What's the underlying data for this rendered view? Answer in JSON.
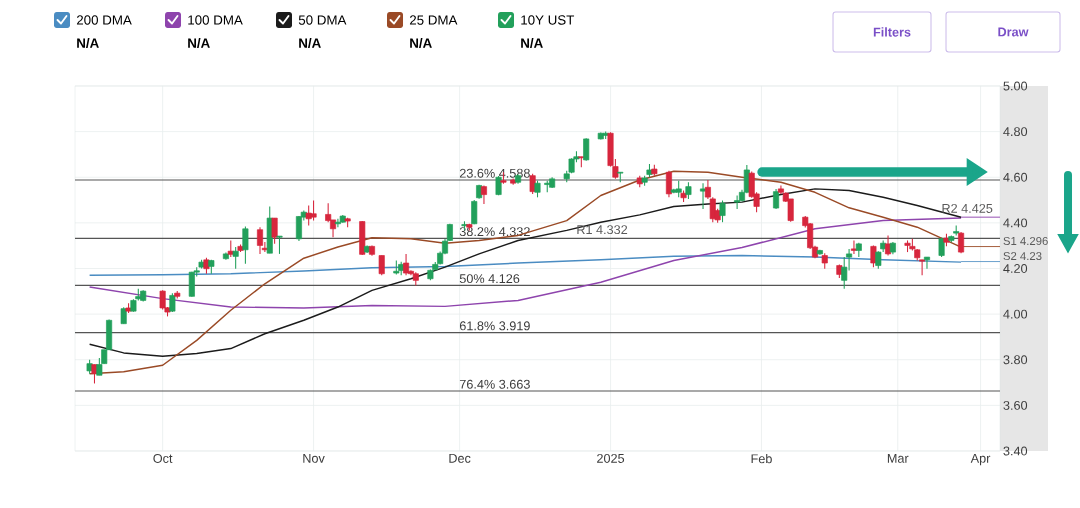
{
  "chart_data": {
    "type": "candlestick",
    "xlim": [
      "2024-09-27",
      "2025-04-05"
    ],
    "ylim": [
      3.4,
      5.0
    ],
    "xticks": [
      {
        "value": "2024-10-15",
        "label": "Oct"
      },
      {
        "value": "2024-11-15",
        "label": "Nov"
      },
      {
        "value": "2024-12-15",
        "label": "Dec"
      },
      {
        "value": "2025-01-15",
        "label": "2025"
      },
      {
        "value": "2025-02-15",
        "label": "Feb"
      },
      {
        "value": "2025-03-15",
        "label": "Mar"
      },
      {
        "value": "2025-04-01",
        "label": "Apr"
      }
    ],
    "yticks": [
      {
        "value": 3.4,
        "label": "3.40"
      },
      {
        "value": 3.6,
        "label": "3.60"
      },
      {
        "value": 3.8,
        "label": "3.80"
      },
      {
        "value": 4.0,
        "label": "4.00"
      },
      {
        "value": 4.2,
        "label": "4.20"
      },
      {
        "value": 4.4,
        "label": "4.40"
      },
      {
        "value": 4.6,
        "label": "4.60"
      },
      {
        "value": 4.8,
        "label": "4.80"
      },
      {
        "value": 5.0,
        "label": "5.00"
      }
    ],
    "grid": true,
    "legend": "top left",
    "series": [
      {
        "name": "200 DMA",
        "type": "line",
        "color": "#4a8cc2",
        "x": [
          "2024-09-30",
          "2024-10-15",
          "2024-10-29",
          "2024-11-13",
          "2024-11-27",
          "2024-12-12",
          "2024-12-27",
          "2025-01-13",
          "2025-01-28",
          "2025-02-11",
          "2025-02-26",
          "2025-03-12",
          "2025-03-28"
        ],
        "values": [
          4.17,
          4.173,
          4.177,
          4.189,
          4.203,
          4.209,
          4.224,
          4.238,
          4.254,
          4.257,
          4.25,
          4.238,
          4.228
        ]
      },
      {
        "name": "100 DMA",
        "type": "line",
        "color": "#8e44ad",
        "x": [
          "2024-09-30",
          "2024-10-15",
          "2024-10-29",
          "2024-11-13",
          "2024-11-27",
          "2024-12-12",
          "2024-12-27",
          "2025-01-13",
          "2025-01-28",
          "2025-02-11",
          "2025-02-26",
          "2025-03-12",
          "2025-03-28"
        ],
        "values": [
          4.119,
          4.068,
          4.031,
          4.027,
          4.038,
          4.034,
          4.06,
          4.14,
          4.235,
          4.292,
          4.374,
          4.41,
          4.421
        ]
      },
      {
        "name": "50 DMA",
        "type": "line",
        "color": "#1b1b1b",
        "x": [
          "2024-09-30",
          "2024-10-07",
          "2024-10-15",
          "2024-10-22",
          "2024-10-29",
          "2024-11-05",
          "2024-11-13",
          "2024-11-20",
          "2024-11-27",
          "2024-12-05",
          "2024-12-12",
          "2024-12-19",
          "2024-12-27",
          "2025-01-06",
          "2025-01-13",
          "2025-01-21",
          "2025-01-28",
          "2025-02-04",
          "2025-02-11",
          "2025-02-19",
          "2025-02-26",
          "2025-03-05",
          "2025-03-12",
          "2025-03-19",
          "2025-03-28"
        ],
        "values": [
          3.868,
          3.83,
          3.815,
          3.827,
          3.849,
          3.914,
          3.973,
          4.031,
          4.104,
          4.155,
          4.206,
          4.264,
          4.323,
          4.367,
          4.403,
          4.435,
          4.472,
          4.483,
          4.491,
          4.524,
          4.549,
          4.542,
          4.512,
          4.476,
          4.425
        ]
      },
      {
        "name": "25 DMA",
        "type": "line",
        "color": "#9a4a26",
        "x": [
          "2024-09-30",
          "2024-10-07",
          "2024-10-15",
          "2024-10-22",
          "2024-10-29",
          "2024-11-05",
          "2024-11-13",
          "2024-11-20",
          "2024-11-27",
          "2024-12-05",
          "2024-12-12",
          "2024-12-19",
          "2024-12-27",
          "2025-01-06",
          "2025-01-13",
          "2025-01-21",
          "2025-01-28",
          "2025-02-04",
          "2025-02-11",
          "2025-02-19",
          "2025-02-26",
          "2025-03-05",
          "2025-03-12",
          "2025-03-19",
          "2025-03-28"
        ],
        "values": [
          3.739,
          3.747,
          3.776,
          3.885,
          4.017,
          4.133,
          4.245,
          4.294,
          4.335,
          4.33,
          4.311,
          4.323,
          4.345,
          4.41,
          4.52,
          4.588,
          4.626,
          4.622,
          4.6,
          4.578,
          4.534,
          4.466,
          4.425,
          4.381,
          4.294
        ]
      },
      {
        "name": "10Y UST",
        "color": "#22a05b",
        "x": [
          "2024-09-30",
          "2024-10-01",
          "2024-10-02",
          "2024-10-03",
          "2024-10-04",
          "2024-10-07",
          "2024-10-08",
          "2024-10-09",
          "2024-10-10",
          "2024-10-11",
          "2024-10-15",
          "2024-10-16",
          "2024-10-17",
          "2024-10-18",
          "2024-10-21",
          "2024-10-22",
          "2024-10-23",
          "2024-10-24",
          "2024-10-25",
          "2024-10-28",
          "2024-10-29",
          "2024-10-30",
          "2024-10-31",
          "2024-11-01",
          "2024-11-04",
          "2024-11-05",
          "2024-11-06",
          "2024-11-07",
          "2024-11-08",
          "2024-11-12",
          "2024-11-13",
          "2024-11-14",
          "2024-11-15",
          "2024-11-18",
          "2024-11-19",
          "2024-11-20",
          "2024-11-21",
          "2024-11-22",
          "2024-11-25",
          "2024-11-26",
          "2024-11-27",
          "2024-11-29",
          "2024-12-02",
          "2024-12-03",
          "2024-12-04",
          "2024-12-05",
          "2024-12-06",
          "2024-12-09",
          "2024-12-10",
          "2024-12-11",
          "2024-12-12",
          "2024-12-13",
          "2024-12-16",
          "2024-12-17",
          "2024-12-18",
          "2024-12-19",
          "2024-12-20",
          "2024-12-23",
          "2024-12-24",
          "2024-12-26",
          "2024-12-27",
          "2024-12-30",
          "2024-12-31",
          "2025-01-02",
          "2025-01-03",
          "2025-01-06",
          "2025-01-07",
          "2025-01-08",
          "2025-01-09",
          "2025-01-10",
          "2025-01-13",
          "2025-01-14",
          "2025-01-15",
          "2025-01-16",
          "2025-01-17",
          "2025-01-21",
          "2025-01-22",
          "2025-01-23",
          "2025-01-24",
          "2025-01-27",
          "2025-01-28",
          "2025-01-29",
          "2025-01-30",
          "2025-01-31",
          "2025-02-03",
          "2025-02-04",
          "2025-02-05",
          "2025-02-06",
          "2025-02-07",
          "2025-02-10",
          "2025-02-11",
          "2025-02-12",
          "2025-02-13",
          "2025-02-14",
          "2025-02-18",
          "2025-02-19",
          "2025-02-20",
          "2025-02-21",
          "2025-02-24",
          "2025-02-25",
          "2025-02-26",
          "2025-02-27",
          "2025-02-28",
          "2025-03-03",
          "2025-03-04",
          "2025-03-05",
          "2025-03-06",
          "2025-03-07",
          "2025-03-10",
          "2025-03-11",
          "2025-03-12",
          "2025-03-13",
          "2025-03-14",
          "2025-03-17",
          "2025-03-18",
          "2025-03-19",
          "2025-03-20",
          "2025-03-21",
          "2025-03-24",
          "2025-03-25",
          "2025-03-26",
          "2025-03-27",
          "2025-03-28"
        ],
        "ohlc": [
          [
            3.751,
            3.8,
            3.739,
            3.783
          ],
          [
            3.779,
            3.779,
            3.696,
            3.739
          ],
          [
            3.732,
            3.808,
            3.732,
            3.779
          ],
          [
            3.783,
            3.844,
            3.783,
            3.844
          ],
          [
            3.844,
            3.976,
            3.844,
            3.973
          ],
          [
            3.958,
            4.03,
            3.958,
            4.024
          ],
          [
            4.027,
            4.048,
            4.005,
            4.013
          ],
          [
            4.013,
            4.065,
            4.01,
            4.06
          ],
          [
            4.067,
            4.111,
            4.06,
            4.077
          ],
          [
            4.06,
            4.105,
            4.055,
            4.101
          ],
          [
            4.101,
            4.105,
            4.02,
            4.027
          ],
          [
            4.028,
            4.031,
            3.99,
            4.009
          ],
          [
            4.013,
            4.092,
            4.009,
            4.082
          ],
          [
            4.092,
            4.101,
            4.068,
            4.078
          ],
          [
            4.078,
            4.186,
            4.076,
            4.184
          ],
          [
            4.184,
            4.206,
            4.165,
            4.19
          ],
          [
            4.206,
            4.238,
            4.2,
            4.228
          ],
          [
            4.238,
            4.247,
            4.177,
            4.199
          ],
          [
            4.209,
            4.238,
            4.177,
            4.235
          ],
          [
            4.243,
            4.27,
            4.238,
            4.264
          ],
          [
            4.276,
            4.323,
            4.25,
            4.262
          ],
          [
            4.253,
            4.294,
            4.199,
            4.276
          ],
          [
            4.297,
            4.305,
            4.272,
            4.279
          ],
          [
            4.282,
            4.384,
            4.221,
            4.374
          ],
          [
            4.37,
            4.381,
            4.264,
            4.301
          ],
          [
            4.289,
            4.316,
            4.272,
            4.282
          ],
          [
            4.267,
            4.472,
            4.267,
            4.421
          ],
          [
            4.421,
            4.421,
            4.308,
            4.337
          ],
          [
            4.337,
            4.342,
            4.264,
            4.342
          ],
          [
            4.33,
            4.43,
            4.32,
            4.428
          ],
          [
            4.425,
            4.454,
            4.41,
            4.447
          ],
          [
            4.443,
            4.476,
            4.389,
            4.418
          ],
          [
            4.44,
            4.498,
            4.41,
            4.425
          ],
          [
            4.437,
            4.486,
            4.403,
            4.41
          ],
          [
            4.413,
            4.413,
            4.337,
            4.374
          ],
          [
            4.396,
            4.418,
            4.381,
            4.403
          ],
          [
            4.403,
            4.435,
            4.4,
            4.43
          ],
          [
            4.418,
            4.422,
            4.381,
            4.408
          ],
          [
            4.406,
            4.408,
            4.259,
            4.262
          ],
          [
            4.272,
            4.301,
            4.268,
            4.297
          ],
          [
            4.297,
            4.301,
            4.256,
            4.262
          ],
          [
            4.257,
            4.257,
            4.17,
            4.177
          ],
          [
            4.18,
            4.235,
            4.174,
            4.188
          ],
          [
            4.191,
            4.23,
            4.17,
            4.218
          ],
          [
            4.224,
            4.264,
            4.17,
            4.18
          ],
          [
            4.188,
            4.192,
            4.17,
            4.177
          ],
          [
            4.177,
            4.184,
            4.126,
            4.148
          ],
          [
            4.155,
            4.196,
            4.148,
            4.192
          ],
          [
            4.195,
            4.228,
            4.192,
            4.218
          ],
          [
            4.221,
            4.275,
            4.218,
            4.267
          ],
          [
            4.267,
            4.329,
            4.262,
            4.32
          ],
          [
            4.323,
            4.396,
            4.32,
            4.393
          ],
          [
            4.387,
            4.407,
            4.367,
            4.393
          ],
          [
            4.393,
            4.396,
            4.367,
            4.381
          ],
          [
            4.396,
            4.5,
            4.394,
            4.494
          ],
          [
            4.51,
            4.567,
            4.506,
            4.564
          ],
          [
            4.559,
            4.564,
            4.483,
            4.524
          ],
          [
            4.524,
            4.606,
            4.521,
            4.6
          ],
          [
            4.585,
            4.622,
            4.571,
            4.578
          ],
          [
            4.588,
            4.594,
            4.567,
            4.574
          ],
          [
            4.578,
            4.613,
            4.571,
            4.607
          ],
          [
            4.607,
            4.615,
            4.527,
            4.537
          ],
          [
            4.534,
            4.585,
            4.512,
            4.574
          ],
          [
            4.568,
            4.585,
            4.534,
            4.574
          ],
          [
            4.556,
            4.6,
            4.553,
            4.593
          ],
          [
            4.593,
            4.629,
            4.578,
            4.615
          ],
          [
            4.622,
            4.683,
            4.618,
            4.68
          ],
          [
            4.68,
            4.714,
            4.666,
            4.69
          ],
          [
            4.69,
            4.69,
            4.644,
            4.685
          ],
          [
            4.676,
            4.771,
            4.672,
            4.768
          ],
          [
            4.768,
            4.796,
            4.765,
            4.793
          ],
          [
            4.783,
            4.801,
            4.768,
            4.793
          ],
          [
            4.793,
            4.797,
            4.647,
            4.651
          ],
          [
            4.647,
            4.68,
            4.593,
            4.6
          ],
          [
            4.618,
            4.622,
            4.578,
            4.622
          ],
          [
            4.597,
            4.607,
            4.556,
            4.571
          ],
          [
            4.578,
            4.607,
            4.563,
            4.597
          ],
          [
            4.612,
            4.658,
            4.6,
            4.632
          ],
          [
            4.636,
            4.655,
            4.607,
            4.615
          ],
          [
            4.622,
            4.629,
            4.512,
            4.527
          ],
          [
            4.534,
            4.55,
            4.53,
            4.545
          ],
          [
            4.534,
            4.585,
            4.512,
            4.549
          ],
          [
            4.53,
            4.542,
            4.491,
            4.51
          ],
          [
            4.524,
            4.578,
            4.505,
            4.559
          ],
          [
            4.539,
            4.574,
            4.461,
            4.549
          ],
          [
            4.556,
            4.588,
            4.505,
            4.513
          ],
          [
            4.505,
            4.512,
            4.403,
            4.418
          ],
          [
            4.454,
            4.462,
            4.4,
            4.413
          ],
          [
            4.432,
            4.498,
            4.403,
            4.486
          ],
          [
            4.491,
            4.52,
            4.461,
            4.498
          ],
          [
            4.498,
            4.545,
            4.494,
            4.534
          ],
          [
            4.534,
            4.654,
            4.53,
            4.632
          ],
          [
            4.618,
            4.625,
            4.51,
            4.515
          ],
          [
            4.527,
            4.534,
            4.447,
            4.472
          ],
          [
            4.465,
            4.549,
            4.461,
            4.537
          ],
          [
            4.549,
            4.564,
            4.527,
            4.534
          ],
          [
            4.53,
            4.534,
            4.491,
            4.495
          ],
          [
            4.505,
            4.505,
            4.405,
            4.41
          ],
          [
            4.425,
            4.43,
            4.38,
            4.388
          ],
          [
            4.396,
            4.399,
            4.285,
            4.291
          ],
          [
            4.294,
            4.3,
            4.245,
            4.25
          ],
          [
            4.264,
            4.282,
            4.26,
            4.279
          ],
          [
            4.257,
            4.267,
            4.199,
            4.224
          ],
          [
            4.213,
            4.218,
            4.158,
            4.174
          ],
          [
            4.148,
            4.25,
            4.111,
            4.206
          ],
          [
            4.25,
            4.286,
            4.191,
            4.264
          ],
          [
            4.286,
            4.323,
            4.264,
            4.279
          ],
          [
            4.279,
            4.313,
            4.25,
            4.308
          ],
          [
            4.297,
            4.301,
            4.206,
            4.224
          ],
          [
            4.213,
            4.276,
            4.199,
            4.272
          ],
          [
            4.286,
            4.323,
            4.272,
            4.311
          ],
          [
            4.308,
            4.345,
            4.257,
            4.264
          ],
          [
            4.272,
            4.316,
            4.262,
            4.311
          ],
          [
            4.311,
            4.323,
            4.272,
            4.301
          ],
          [
            4.297,
            4.33,
            4.279,
            4.286
          ],
          [
            4.282,
            4.286,
            4.235,
            4.247
          ],
          [
            4.238,
            4.238,
            4.17,
            4.232
          ],
          [
            4.238,
            4.25,
            4.199,
            4.25
          ],
          [
            4.257,
            4.335,
            4.25,
            4.33
          ],
          [
            4.333,
            4.352,
            4.297,
            4.315
          ],
          [
            4.323,
            4.345,
            4.315,
            4.34
          ],
          [
            4.355,
            4.388,
            4.345,
            4.362
          ],
          [
            4.355,
            4.36,
            4.267,
            4.272
          ]
        ],
        "colors": [
          "#22a05b",
          "#d7263d",
          "#22a05b",
          "#22a05b",
          "#22a05b",
          "#22a05b",
          "#d7263d",
          "#22a05b",
          "#22a05b",
          "#22a05b",
          "#d7263d",
          "#d7263d",
          "#22a05b",
          "#d7263d",
          "#22a05b",
          "#22a05b",
          "#22a05b",
          "#d7263d",
          "#22a05b",
          "#22a05b",
          "#d7263d",
          "#22a05b",
          "#d7263d",
          "#22a05b",
          "#d7263d",
          "#d7263d",
          "#22a05b",
          "#d7263d",
          "#22a05b",
          "#22a05b",
          "#22a05b",
          "#d7263d",
          "#d7263d",
          "#d7263d",
          "#d7263d",
          "#22a05b",
          "#22a05b",
          "#d7263d",
          "#d7263d",
          "#22a05b",
          "#d7263d",
          "#d7263d",
          "#22a05b",
          "#22a05b",
          "#d7263d",
          "#d7263d",
          "#d7263d",
          "#22a05b",
          "#22a05b",
          "#22a05b",
          "#22a05b",
          "#22a05b",
          "#22a05b",
          "#d7263d",
          "#22a05b",
          "#22a05b",
          "#d7263d",
          "#22a05b",
          "#d7263d",
          "#d7263d",
          "#22a05b",
          "#d7263d",
          "#22a05b",
          "#22a05b",
          "#22a05b",
          "#22a05b",
          "#22a05b",
          "#22a05b",
          "#d7263d",
          "#22a05b",
          "#22a05b",
          "#22a05b",
          "#d7263d",
          "#d7263d",
          "#22a05b",
          "#d7263d",
          "#22a05b",
          "#22a05b",
          "#d7263d",
          "#d7263d",
          "#22a05b",
          "#22a05b",
          "#d7263d",
          "#22a05b",
          "#22a05b",
          "#d7263d",
          "#d7263d",
          "#d7263d",
          "#22a05b",
          "#22a05b",
          "#22a05b",
          "#22a05b",
          "#d7263d",
          "#d7263d",
          "#22a05b",
          "#d7263d",
          "#d7263d",
          "#d7263d",
          "#d7263d",
          "#d7263d",
          "#d7263d",
          "#22a05b",
          "#d7263d",
          "#d7263d",
          "#22a05b",
          "#22a05b",
          "#d7263d",
          "#22a05b",
          "#d7263d",
          "#22a05b",
          "#22a05b",
          "#d7263d",
          "#22a05b",
          "#d7263d",
          "#d7263d",
          "#d7263d",
          "#d7263d",
          "#22a05b",
          "#22a05b",
          "#d7263d",
          "#22a05b",
          "#22a05b",
          "#d7263d"
        ]
      },
      {
        "type": "line",
        "color": "#8e44ad",
        "x": [
          "2025-03-28",
          "2025-04-05"
        ],
        "values": [
          4.425,
          4.425
        ]
      },
      {
        "type": "line",
        "color": "#9a4a26",
        "x": [
          "2025-03-28",
          "2025-04-05"
        ],
        "values": [
          4.296,
          4.296
        ]
      },
      {
        "type": "line",
        "color": "#4a8cc2",
        "x": [
          "2025-03-28",
          "2025-04-05"
        ],
        "values": [
          4.23,
          4.23
        ]
      }
    ],
    "ref_lines": [
      {
        "axis": "y",
        "value": 4.588,
        "label": "23.6% 4.588",
        "color": "#555555"
      },
      {
        "axis": "y",
        "value": 4.332,
        "label": "38.2% 4.332",
        "color": "#555555"
      },
      {
        "axis": "y",
        "value": 4.126,
        "label": "50% 4.126",
        "color": "#555555"
      },
      {
        "axis": "y",
        "value": 3.919,
        "label": "61.8% 3.919",
        "color": "#555555"
      },
      {
        "axis": "y",
        "value": 3.663,
        "label": "76.4% 3.663",
        "color": "#555555"
      }
    ],
    "annotations": [
      "N/A",
      "N/A",
      "N/A",
      "N/A",
      "N/A",
      "Filters",
      "Draw",
      {
        "text": "R1 4.332",
        "x": "2025-01-19",
        "y": 4.332
      },
      {
        "text": "R2 4.425",
        "x": "2025-04-04",
        "y": 4.425
      },
      {
        "text": "S1 4.296",
        "x": "2025-04-04",
        "y": 4.296
      },
      {
        "text": "S2 4.23",
        "x": "2025-04-04",
        "y": 4.23
      }
    ]
  }
}
